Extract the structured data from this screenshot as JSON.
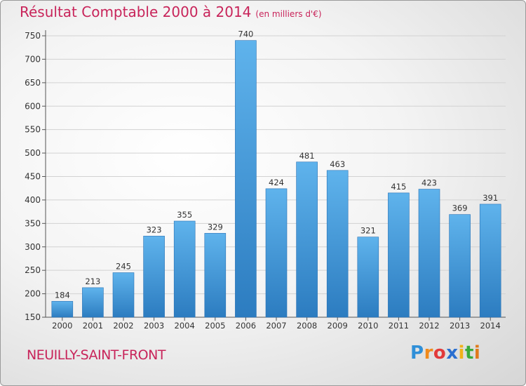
{
  "chart_data": {
    "type": "bar",
    "title": "Résultat Comptable 2000 à 2014",
    "subtitle": "(en milliers d'€)",
    "categories": [
      "2000",
      "2001",
      "2002",
      "2003",
      "2004",
      "2005",
      "2006",
      "2007",
      "2008",
      "2009",
      "2010",
      "2011",
      "2012",
      "2013",
      "2014"
    ],
    "values": [
      184,
      213,
      245,
      323,
      355,
      329,
      740,
      424,
      481,
      463,
      321,
      415,
      423,
      369,
      391
    ],
    "xlabel": "",
    "ylabel": "",
    "ylim": [
      150,
      750
    ],
    "yticks": [
      150,
      200,
      250,
      300,
      350,
      400,
      450,
      500,
      550,
      600,
      650,
      700,
      750
    ],
    "grid": true,
    "bar_color": "#3a8fd4"
  },
  "commune": "NEUILLY-SAINT-FRONT",
  "logo": {
    "letters": [
      "P",
      "r",
      "o",
      "x",
      "i",
      "t",
      "i"
    ],
    "colors": [
      "#2f8fd8",
      "#f08a1c",
      "#e23a3a",
      "#2a6fd0",
      "#f0b21a",
      "#3aaa3a",
      "#e07a1a"
    ]
  }
}
